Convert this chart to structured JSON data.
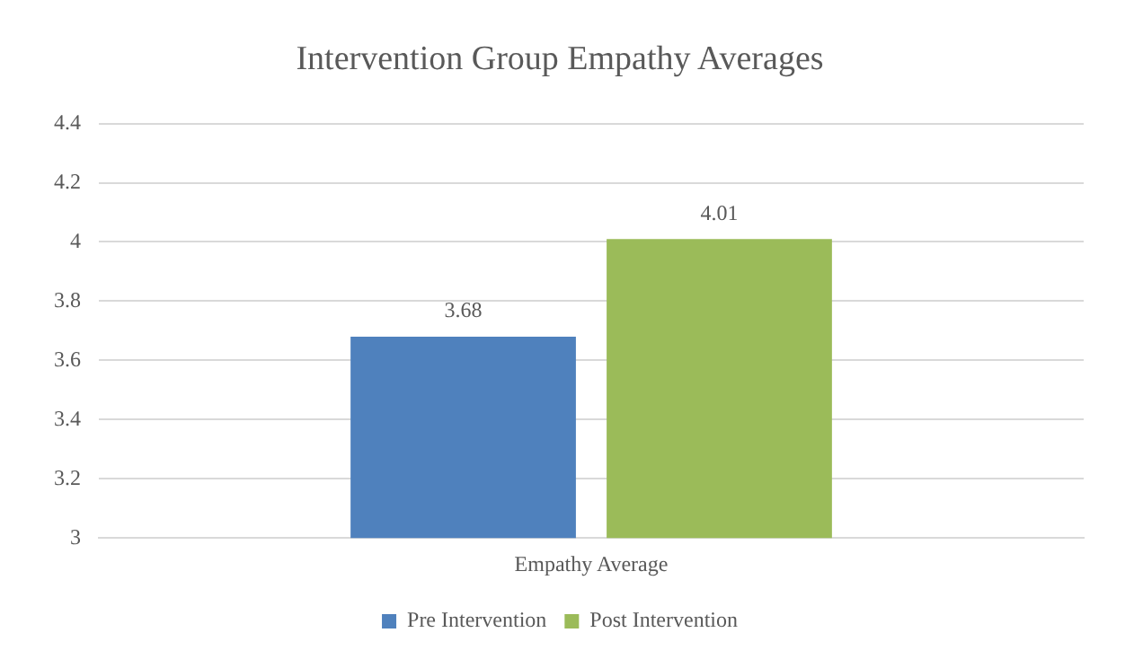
{
  "chart_data": {
    "type": "bar",
    "title": "Intervention Group Empathy Averages",
    "categories": [
      "Empathy Average"
    ],
    "series": [
      {
        "name": "Pre Intervention",
        "color": "#4f81bd",
        "values": [
          3.68
        ]
      },
      {
        "name": "Post Intervention",
        "color": "#9bbb59",
        "values": [
          4.01
        ]
      }
    ],
    "ylim": [
      3,
      4.4
    ],
    "yticks": [
      3,
      3.2,
      3.4,
      3.6,
      3.8,
      4,
      4.2,
      4.4
    ],
    "grid": "y",
    "legend": "bottom",
    "data_labels": true
  }
}
